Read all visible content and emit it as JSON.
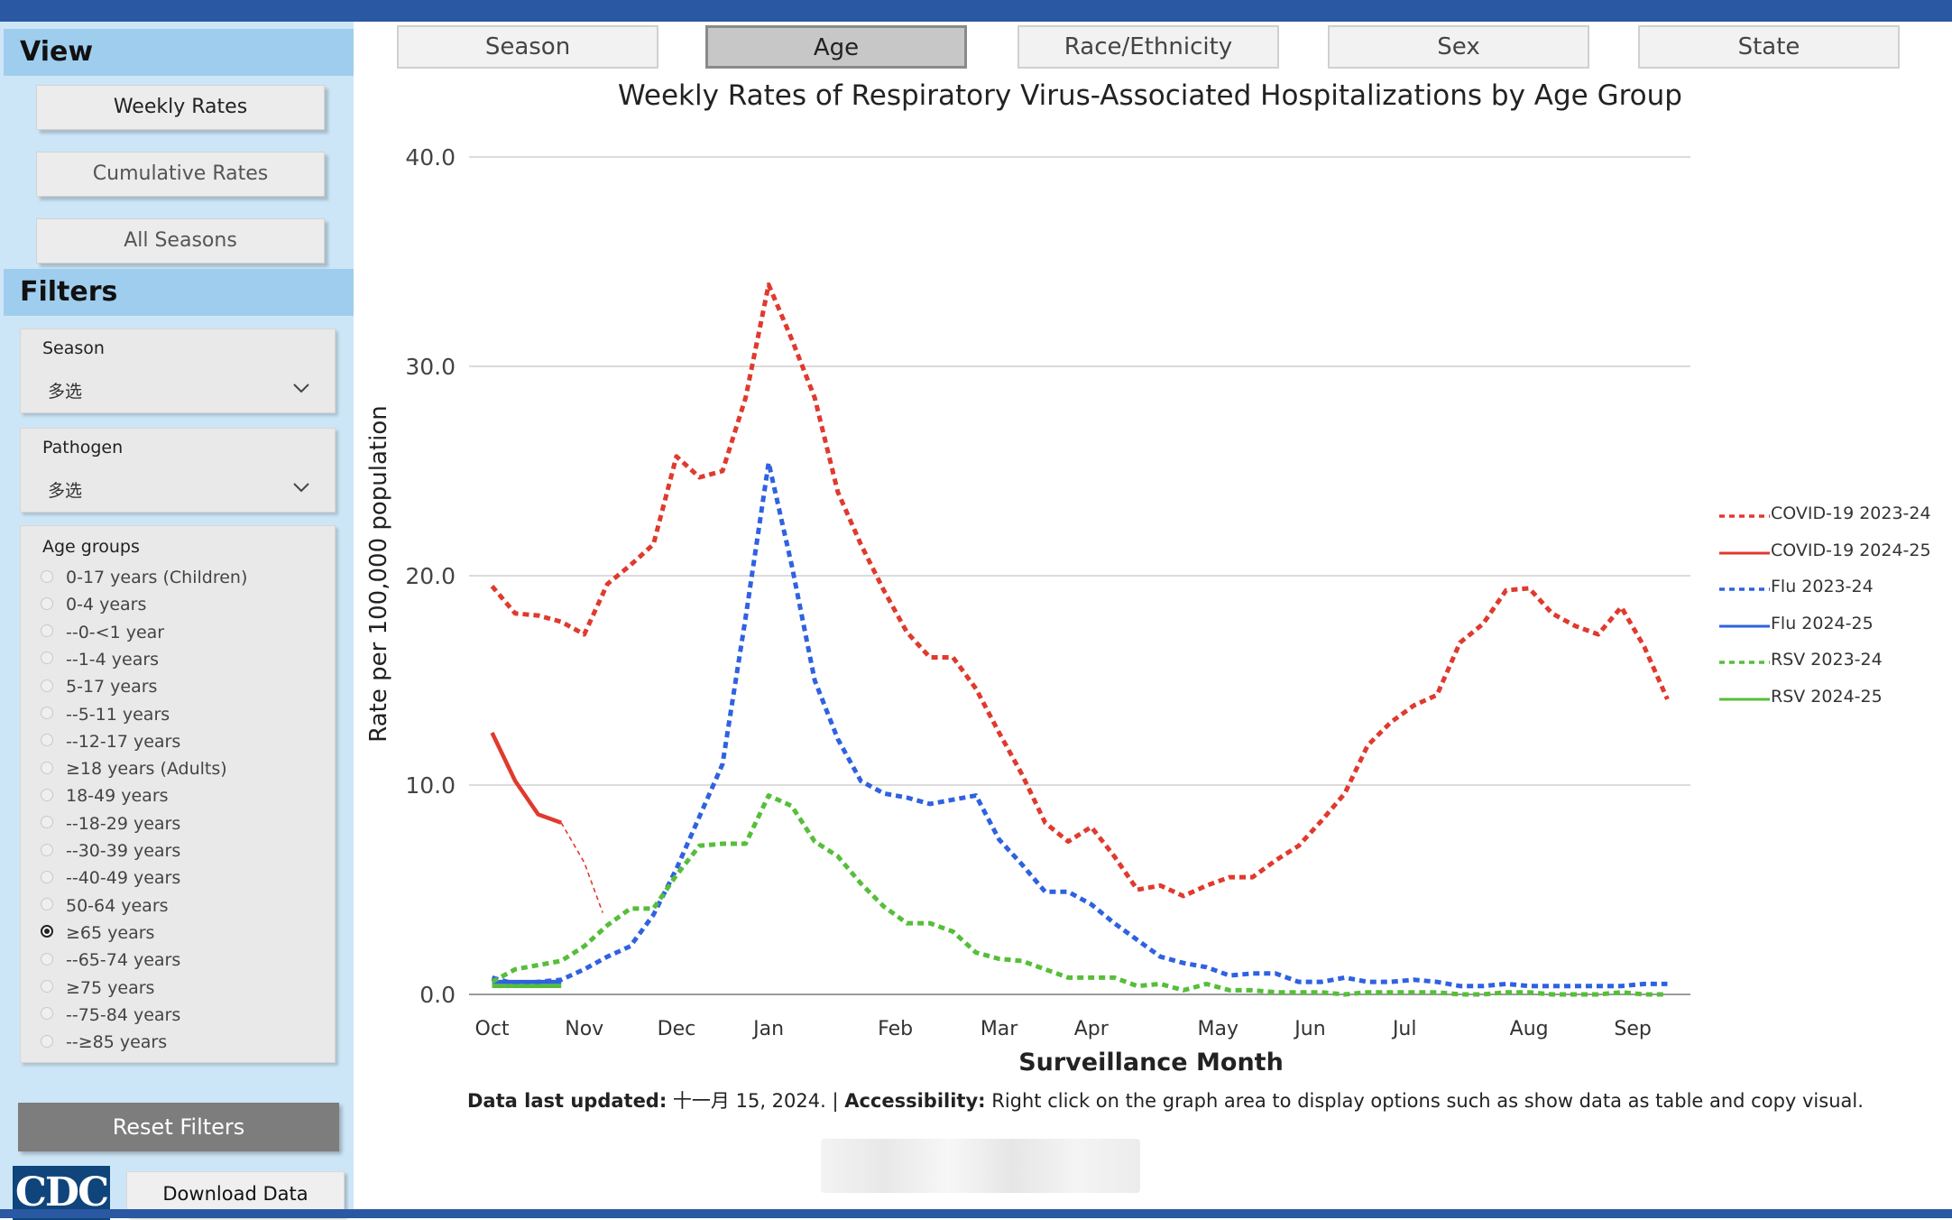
{
  "sidebar": {
    "view_heading": "View",
    "view_buttons": [
      "Weekly Rates",
      "Cumulative Rates",
      "All Seasons"
    ],
    "filters_heading": "Filters",
    "season": {
      "label": "Season",
      "value": "多选"
    },
    "pathogen": {
      "label": "Pathogen",
      "value": "多选"
    },
    "age_groups": {
      "label": "Age groups",
      "items": [
        "0-17 years (Children)",
        "0-4 years",
        "--0-<1 year",
        "--1-4 years",
        "5-17 years",
        "--5-11 years",
        "--12-17 years",
        "≥18 years (Adults)",
        "18-49 years",
        "--18-29 years",
        "--30-39 years",
        "--40-49 years",
        "50-64 years",
        "≥65 years",
        "--65-74 years",
        "≥75 years",
        "--75-84 years",
        "--≥85 years"
      ],
      "selected": "≥65 years"
    },
    "reset_label": "Reset Filters",
    "logo_text": "CDC",
    "download_label": "Download Data"
  },
  "tabs": {
    "items": [
      "Season",
      "Age",
      "Race/Ethnicity",
      "Sex",
      "State"
    ],
    "active": "Age"
  },
  "footer": {
    "updated_label": "Data last updated:",
    "updated_value": " 十一月 15, 2024. | ",
    "access_label": "Accessibility:",
    "access_text": " Right click on the graph area to display options such as show data as table and copy visual."
  },
  "colors": {
    "covid": "#e03a2e",
    "flu": "#2f62e0",
    "rsv": "#56be3a",
    "grid": "#cfcfcf",
    "axis": "#9a9a9a"
  },
  "chart_data": {
    "type": "line",
    "title": "Weekly Rates of Respiratory Virus-Associated Hospitalizations by Age Group",
    "xlabel": "Surveillance Month",
    "ylabel": "Rate per 100,000 population",
    "ylim": [
      0,
      40
    ],
    "yticks": [
      "0.0",
      "10.0",
      "20.0",
      "30.0",
      "40.0"
    ],
    "x_ticklabels": [
      "Oct",
      "Nov",
      "Dec",
      "Jan",
      "Feb",
      "Mar",
      "Apr",
      "May",
      "Jun",
      "Jul",
      "Aug",
      "Sep"
    ],
    "x_ticks_week": [
      1,
      5,
      9,
      13,
      18.5,
      23,
      27,
      32.5,
      36.5,
      40.6,
      46,
      50.5
    ],
    "x_range_week": [
      0,
      53
    ],
    "grid": true,
    "legend_position": "right",
    "series": [
      {
        "name": "COVID-19 2023-24",
        "style": "dotted",
        "color": "#e03a2e",
        "values": [
          19.5,
          18.2,
          18.1,
          17.8,
          17.2,
          19.6,
          20.5,
          21.5,
          25.7,
          24.7,
          25.0,
          28.5,
          33.9,
          31.3,
          28.5,
          24.0,
          21.5,
          19.3,
          17.3,
          16.1,
          16.1,
          14.6,
          12.5,
          10.5,
          8.2,
          7.3,
          8.0,
          6.6,
          5.0,
          5.2,
          4.7,
          5.2,
          5.6,
          5.6,
          6.4,
          7.1,
          8.3,
          9.6,
          11.9,
          13.0,
          13.8,
          14.3,
          16.8,
          17.7,
          19.3,
          19.4,
          18.2,
          17.6,
          17.2,
          18.5,
          16.6,
          14.1
        ]
      },
      {
        "name": "COVID-19 2024-25",
        "style": "solid",
        "color": "#e03a2e",
        "values": [
          12.5,
          10.2,
          8.6,
          8.2
        ]
      },
      {
        "name": "Flu 2023-24",
        "style": "dotted",
        "color": "#2f62e0",
        "values": [
          0.8,
          0.5,
          0.6,
          0.7,
          1.2,
          1.8,
          2.3,
          3.8,
          6.0,
          8.5,
          11.0,
          18.0,
          25.4,
          20.5,
          15.0,
          12.2,
          10.2,
          9.6,
          9.4,
          9.1,
          9.3,
          9.5,
          7.4,
          6.2,
          4.9,
          4.9,
          4.3,
          3.4,
          2.6,
          1.8,
          1.5,
          1.3,
          0.9,
          1.0,
          1.0,
          0.6,
          0.6,
          0.8,
          0.6,
          0.6,
          0.7,
          0.6,
          0.4,
          0.4,
          0.5,
          0.4,
          0.4,
          0.4,
          0.4,
          0.4,
          0.5,
          0.5
        ]
      },
      {
        "name": "Flu 2024-25",
        "style": "solid",
        "color": "#2f62e0",
        "values": [
          0.6,
          0.6,
          0.6,
          0.6
        ]
      },
      {
        "name": "RSV 2023-24",
        "style": "dotted",
        "color": "#56be3a",
        "values": [
          0.6,
          1.2,
          1.4,
          1.6,
          2.3,
          3.3,
          4.1,
          4.1,
          5.7,
          7.1,
          7.2,
          7.2,
          9.5,
          9.0,
          7.3,
          6.6,
          5.3,
          4.2,
          3.4,
          3.4,
          3.0,
          2.0,
          1.7,
          1.6,
          1.2,
          0.8,
          0.8,
          0.8,
          0.4,
          0.5,
          0.2,
          0.5,
          0.2,
          0.2,
          0.1,
          0.1,
          0.1,
          0.0,
          0.1,
          0.1,
          0.1,
          0.1,
          0.0,
          0.0,
          0.1,
          0.1,
          0.0,
          0.0,
          0.0,
          0.1,
          0.0,
          0.0
        ]
      },
      {
        "name": "RSV 2024-25",
        "style": "solid",
        "color": "#56be3a",
        "values": [
          0.4,
          0.4,
          0.4,
          0.4
        ]
      }
    ]
  }
}
